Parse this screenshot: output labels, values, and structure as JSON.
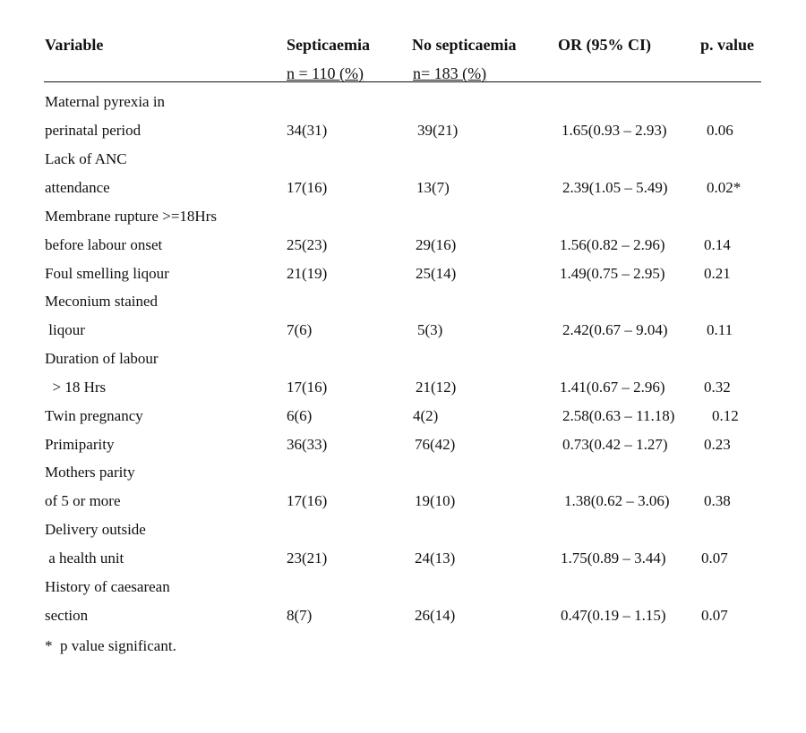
{
  "headers": {
    "variable": "Variable",
    "septicaemia": "Septicaemia",
    "septicaemia_n": "n = 110 (%)",
    "no_septicaemia": "No septicaemia",
    "no_septicaemia_n": "n= 183 (%)",
    "or": "OR (95% CI)",
    "p": "p. value"
  },
  "rows": [
    {
      "label1": "Maternal pyrexia in",
      "label2": "perinatal period",
      "sep": "34(31)",
      "nosep": "39(21)",
      "or": "1.65(0.93 – 2.93)",
      "p": "0.06"
    },
    {
      "label1": "Lack of ANC",
      "label2": "attendance",
      "sep": "17(16)",
      "nosep": "13(7)",
      "or": "2.39(1.05 – 5.49)",
      "p": "0.02*"
    },
    {
      "label1": "Membrane rupture >=18Hrs",
      "label2": "before labour onset",
      "sep": "25(23)",
      "nosep": "29(16)",
      "or": "1.56(0.82 – 2.96)",
      "p": "0.14"
    },
    {
      "label1": "",
      "label2": "Foul smelling liqour",
      "sep": "21(19)",
      "nosep": "25(14)",
      "or": "1.49(0.75 – 2.95)",
      "p": "0.21"
    },
    {
      "label1": "Meconium stained",
      "label2": " liqour",
      "sep": "7(6)",
      "nosep": "5(3)",
      "or": "2.42(0.67 – 9.04)",
      "p": "0.11"
    },
    {
      "label1": "Duration  of labour",
      "label2": "  > 18 Hrs",
      "sep": "17(16)",
      "nosep": "21(12)",
      "or": "1.41(0.67 – 2.96)",
      "p": "0.32"
    },
    {
      "label1": "",
      "label2": "Twin pregnancy",
      "sep": "6(6)",
      "nosep": "4(2)",
      "or": "2.58(0.63 – 11.18)",
      "p": "0.12"
    },
    {
      "label1": "",
      "label2": "Primiparity",
      "sep": "36(33)",
      "nosep": "76(42)",
      "or": "0.73(0.42 – 1.27)",
      "p": "0.23"
    },
    {
      "label1": "Mothers parity",
      "label2": "of 5 or more",
      "sep": "17(16)",
      "nosep": "19(10)",
      "or": "1.38(0.62 – 3.06)",
      "p": "0.38"
    },
    {
      "label1": "Delivery outside",
      "label2": " a health unit",
      "sep": "23(21)",
      "nosep": "24(13)",
      "or": "1.75(0.89 – 3.44)",
      "p": "0.07"
    },
    {
      "label1": "History of caesarean",
      "label2": "section",
      "sep": "8(7)",
      "nosep": "26(14)",
      "or": "0.47(0.19 – 1.15)",
      "p": "0.07"
    }
  ],
  "footnote": "*  p value significant."
}
